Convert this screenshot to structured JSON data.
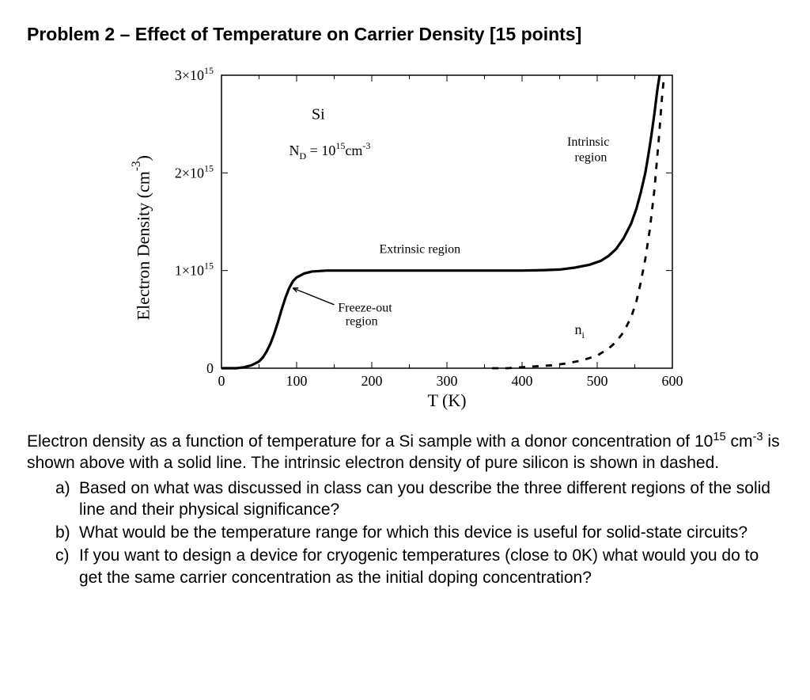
{
  "title": "Problem 2 – Effect of Temperature on Carrier Density [15 points]",
  "chart": {
    "type": "line",
    "ylabel_html": "Electron Density (cm<sup>-3</sup>)",
    "xlabel": "T  (K)",
    "xlim": [
      0,
      600
    ],
    "ylim": [
      0,
      3000000000000000.0
    ],
    "xticks": [
      0,
      100,
      200,
      300,
      400,
      500,
      600
    ],
    "yticks_vals": [
      0,
      1000000000000000.0,
      2000000000000000.0,
      3000000000000000.0
    ],
    "ytick_labels_html": [
      "0",
      "1×10<sup>15</sup>",
      "2×10<sup>15</sup>",
      "3×10<sup>15</sup>"
    ],
    "frame_color": "#000000",
    "background_color": "#ffffff",
    "solid_curve": {
      "color": "#000000",
      "line_width": 3.2,
      "points": [
        [
          0,
          0.0
        ],
        [
          10,
          0.0
        ],
        [
          20,
          0.0
        ],
        [
          30,
          0.01
        ],
        [
          40,
          0.03
        ],
        [
          50,
          0.07
        ],
        [
          55,
          0.11
        ],
        [
          60,
          0.17
        ],
        [
          65,
          0.25
        ],
        [
          70,
          0.35
        ],
        [
          75,
          0.47
        ],
        [
          80,
          0.6
        ],
        [
          85,
          0.72
        ],
        [
          90,
          0.82
        ],
        [
          95,
          0.89
        ],
        [
          100,
          0.93
        ],
        [
          110,
          0.97
        ],
        [
          120,
          0.99
        ],
        [
          140,
          1.0
        ],
        [
          160,
          1.0
        ],
        [
          200,
          1.0
        ],
        [
          250,
          1.0
        ],
        [
          300,
          1.0
        ],
        [
          350,
          1.0
        ],
        [
          400,
          1.0
        ],
        [
          430,
          1.005
        ],
        [
          450,
          1.01
        ],
        [
          470,
          1.03
        ],
        [
          490,
          1.06
        ],
        [
          505,
          1.1
        ],
        [
          515,
          1.15
        ],
        [
          525,
          1.22
        ],
        [
          535,
          1.33
        ],
        [
          545,
          1.48
        ],
        [
          552,
          1.63
        ],
        [
          558,
          1.8
        ],
        [
          564,
          2.0
        ],
        [
          568,
          2.18
        ],
        [
          572,
          2.38
        ],
        [
          576,
          2.6
        ],
        [
          580,
          2.85
        ],
        [
          583,
          3.0
        ]
      ]
    },
    "dashed_curve": {
      "color": "#000000",
      "line_width": 2.8,
      "dash": "8 9",
      "points": [
        [
          360,
          0.0
        ],
        [
          380,
          0.0
        ],
        [
          400,
          0.01
        ],
        [
          420,
          0.02
        ],
        [
          440,
          0.03
        ],
        [
          460,
          0.05
        ],
        [
          480,
          0.08
        ],
        [
          500,
          0.13
        ],
        [
          515,
          0.2
        ],
        [
          525,
          0.27
        ],
        [
          535,
          0.37
        ],
        [
          545,
          0.52
        ],
        [
          552,
          0.68
        ],
        [
          558,
          0.88
        ],
        [
          564,
          1.12
        ],
        [
          570,
          1.42
        ],
        [
          576,
          1.82
        ],
        [
          582,
          2.35
        ],
        [
          586,
          2.75
        ],
        [
          589,
          3.0
        ]
      ]
    },
    "annotations": {
      "material": "Si",
      "doping_html": "N<sub>D</sub> = 10<sup>15</sup>cm<sup>-3</sup>",
      "extrinsic_label": "Extrinsic region",
      "freezeout_label_line1": "Freeze-out",
      "freezeout_label_line2": "region",
      "intrinsic_label_line1": "Intrinsic",
      "intrinsic_label_line2": "region",
      "ni_label_html": "n<sub>i</sub>"
    },
    "fonts": {
      "axis_number_size": 18,
      "label_size": 22,
      "annotation_size": 16,
      "material_size": 20
    }
  },
  "desc_html": "Electron density as a function of temperature for a Si sample with a donor concentration of 10<sup>15</sup> cm<sup>-3</sup> is shown above with a solid line. The intrinsic electron density of pure silicon is shown in dashed.",
  "questions": [
    {
      "letter": "a)",
      "text": "Based on what was discussed in class can you describe the three different regions of the solid line and their physical significance?"
    },
    {
      "letter": "b)",
      "text": "What would be the temperature range for which this device is useful for solid-state circuits?"
    },
    {
      "letter": "c)",
      "text": "If you want to design a device for cryogenic temperatures (close to 0K) what would you do to get the same carrier concentration as the initial doping concentration?"
    }
  ]
}
